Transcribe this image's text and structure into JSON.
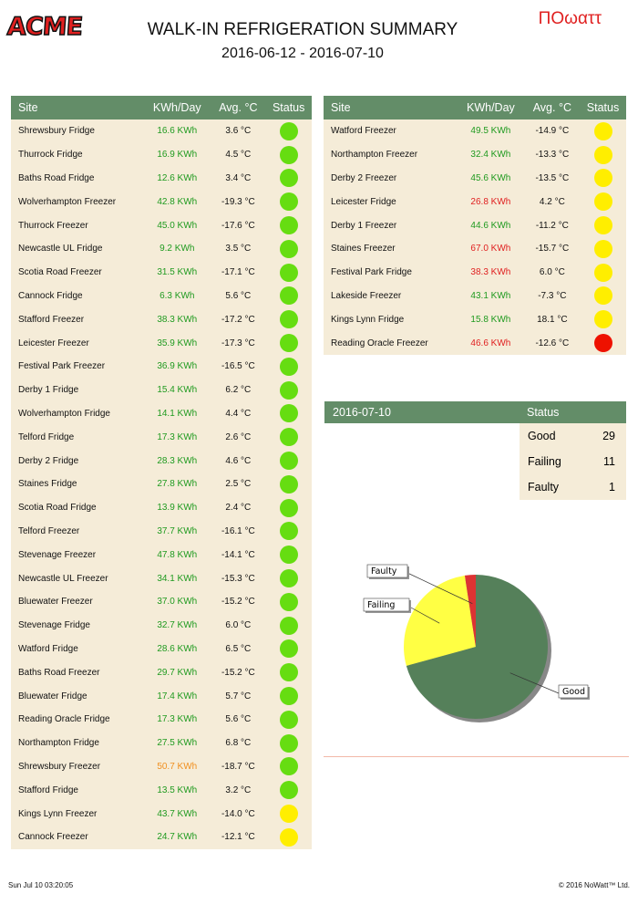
{
  "header": {
    "logo": "ACME",
    "title": "WALK-IN REFRIGERATION SUMMARY",
    "date_range": "2016-06-12 - 2016-07-10",
    "brand": "ΠOωαττ"
  },
  "columns": {
    "site": "Site",
    "kwh": "KWh/Day",
    "avg": "Avg. °C",
    "status": "Status"
  },
  "status_colors": {
    "good": "#66dd11",
    "failing": "#ffee00",
    "faulty": "#ee1100"
  },
  "text_colors": {
    "green": "#1f9a1f",
    "red": "#e02020",
    "orange": "#f09020"
  },
  "left_table": [
    [
      "Shrewsbury Fridge",
      "16.6 KWh",
      "3.6 °C",
      "good",
      "green"
    ],
    [
      "Thurrock Fridge",
      "16.9 KWh",
      "4.5 °C",
      "good",
      "green"
    ],
    [
      "Baths Road Fridge",
      "12.6 KWh",
      "3.4 °C",
      "good",
      "green"
    ],
    [
      "Wolverhampton Freezer",
      "42.8 KWh",
      "-19.3 °C",
      "good",
      "green"
    ],
    [
      "Thurrock Freezer",
      "45.0 KWh",
      "-17.6 °C",
      "good",
      "green"
    ],
    [
      "Newcastle UL Fridge",
      "9.2 KWh",
      "3.5 °C",
      "good",
      "green"
    ],
    [
      "Scotia Road Freezer",
      "31.5 KWh",
      "-17.1 °C",
      "good",
      "green"
    ],
    [
      "Cannock Fridge",
      "6.3 KWh",
      "5.6 °C",
      "good",
      "green"
    ],
    [
      "Stafford Freezer",
      "38.3 KWh",
      "-17.2 °C",
      "good",
      "green"
    ],
    [
      "Leicester Freezer",
      "35.9 KWh",
      "-17.3 °C",
      "good",
      "green"
    ],
    [
      "Festival Park Freezer",
      "36.9 KWh",
      "-16.5 °C",
      "good",
      "green"
    ],
    [
      "Derby 1 Fridge",
      "15.4 KWh",
      "6.2 °C",
      "good",
      "green"
    ],
    [
      "Wolverhampton Fridge",
      "14.1 KWh",
      "4.4 °C",
      "good",
      "green"
    ],
    [
      "Telford Fridge",
      "17.3 KWh",
      "2.6 °C",
      "good",
      "green"
    ],
    [
      "Derby 2 Fridge",
      "28.3 KWh",
      "4.6 °C",
      "good",
      "green"
    ],
    [
      "Staines Fridge",
      "27.8 KWh",
      "2.5 °C",
      "good",
      "green"
    ],
    [
      "Scotia Road Fridge",
      "13.9 KWh",
      "2.4 °C",
      "good",
      "green"
    ],
    [
      "Telford Freezer",
      "37.7 KWh",
      "-16.1 °C",
      "good",
      "green"
    ],
    [
      "Stevenage Freezer",
      "47.8 KWh",
      "-14.1 °C",
      "good",
      "green"
    ],
    [
      "Newcastle UL Freezer",
      "34.1 KWh",
      "-15.3 °C",
      "good",
      "green"
    ],
    [
      "Bluewater Freezer",
      "37.0 KWh",
      "-15.2 °C",
      "good",
      "green"
    ],
    [
      "Stevenage Fridge",
      "32.7 KWh",
      "6.0 °C",
      "good",
      "green"
    ],
    [
      "Watford Fridge",
      "28.6 KWh",
      "6.5 °C",
      "good",
      "green"
    ],
    [
      "Baths Road Freezer",
      "29.7 KWh",
      "-15.2 °C",
      "good",
      "green"
    ],
    [
      "Bluewater Fridge",
      "17.4 KWh",
      "5.7 °C",
      "good",
      "green"
    ],
    [
      "Reading Oracle Fridge",
      "17.3 KWh",
      "5.6 °C",
      "good",
      "green"
    ],
    [
      "Northampton Fridge",
      "27.5 KWh",
      "6.8 °C",
      "good",
      "green"
    ],
    [
      "Shrewsbury Freezer",
      "50.7 KWh",
      "-18.7 °C",
      "good",
      "orange"
    ],
    [
      "Stafford Fridge",
      "13.5 KWh",
      "3.2 °C",
      "good",
      "green"
    ],
    [
      "Kings Lynn Freezer",
      "43.7 KWh",
      "-14.0 °C",
      "failing",
      "green"
    ],
    [
      "Cannock Freezer",
      "24.7 KWh",
      "-12.1 °C",
      "failing",
      "green"
    ]
  ],
  "right_table": [
    [
      "Watford Freezer",
      "49.5 KWh",
      "-14.9 °C",
      "failing",
      "green"
    ],
    [
      "Northampton Freezer",
      "32.4 KWh",
      "-13.3 °C",
      "failing",
      "green"
    ],
    [
      "Derby 2 Freezer",
      "45.6 KWh",
      "-13.5 °C",
      "failing",
      "green"
    ],
    [
      "Leicester Fridge",
      "26.8 KWh",
      "4.2 °C",
      "failing",
      "red"
    ],
    [
      "Derby 1 Freezer",
      "44.6 KWh",
      "-11.2 °C",
      "failing",
      "green"
    ],
    [
      "Staines Freezer",
      "67.0 KWh",
      "-15.7 °C",
      "failing",
      "red"
    ],
    [
      "Festival Park Fridge",
      "38.3 KWh",
      "6.0 °C",
      "failing",
      "red"
    ],
    [
      "Lakeside Freezer",
      "43.1 KWh",
      "-7.3 °C",
      "failing",
      "green"
    ],
    [
      "Kings Lynn Fridge",
      "15.8 KWh",
      "18.1 °C",
      "failing",
      "green"
    ],
    [
      "Reading Oracle Freezer",
      "46.6 KWh",
      "-12.6 °C",
      "faulty",
      "red"
    ]
  ],
  "summary": {
    "date": "2016-07-10",
    "status_label": "Status",
    "rows": [
      {
        "label": "Good",
        "count": "29"
      },
      {
        "label": "Failing",
        "count": "11"
      },
      {
        "label": "Faulty",
        "count": "1"
      }
    ]
  },
  "chart_data": {
    "type": "pie",
    "categories": [
      "Good",
      "Failing",
      "Faulty"
    ],
    "values": [
      29,
      11,
      1
    ],
    "colors": [
      "#55805a",
      "#ffff44",
      "#dd3333"
    ]
  },
  "footer": {
    "timestamp": "Sun Jul 10 03:20:05",
    "copyright": "© 2016 NoWatt™ Ltd."
  }
}
